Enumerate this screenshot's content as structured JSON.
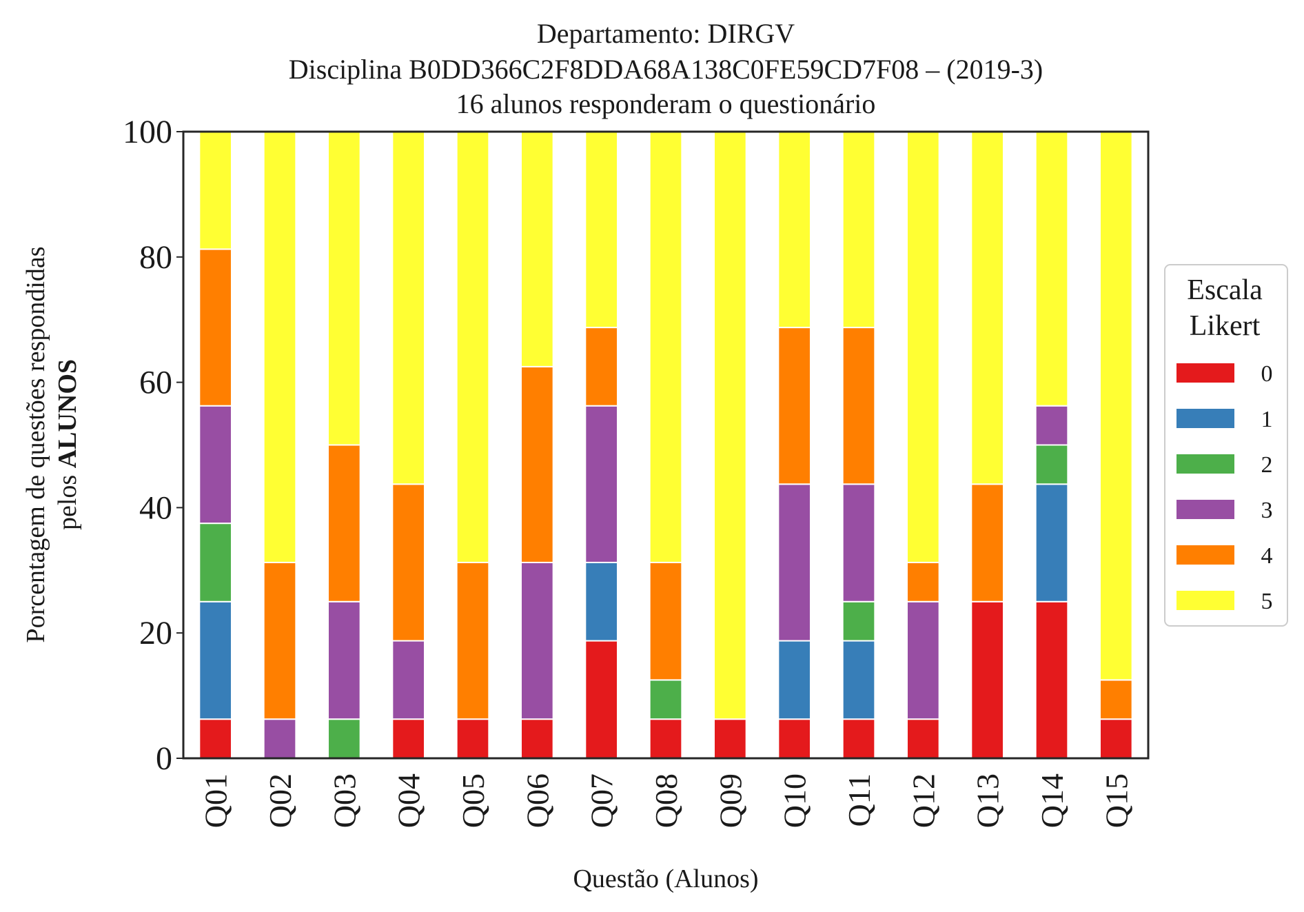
{
  "chart_data": {
    "type": "bar",
    "stacked": true,
    "title_lines": [
      "Departamento: DIRGV",
      "Disciplina B0DD366C2F8DDA68A138C0FE59CD7F08 – (2019-3)",
      "16 alunos responderam o questionário"
    ],
    "xlabel": "Questão (Alunos)",
    "ylabel_line1": "Porcentagem de questões respondidas",
    "ylabel_line2_prefix": "pelos ",
    "ylabel_line2_bold": "ALUNOS",
    "ylim": [
      0,
      100
    ],
    "yticks": [
      "0",
      "20",
      "40",
      "60",
      "80",
      "100"
    ],
    "grid": false,
    "legend": {
      "title_lines": [
        "Escala",
        "Likert"
      ],
      "placement": "right"
    },
    "categories": [
      "Q01",
      "Q02",
      "Q03",
      "Q04",
      "Q05",
      "Q06",
      "Q07",
      "Q08",
      "Q09",
      "Q10",
      "Q11",
      "Q12",
      "Q13",
      "Q14",
      "Q15"
    ],
    "series": [
      {
        "name": "0",
        "color": "#e41a1c",
        "values": [
          6.25,
          0,
          0,
          6.25,
          6.25,
          6.25,
          18.75,
          6.25,
          6.25,
          6.25,
          6.25,
          6.25,
          25,
          25,
          6.25
        ]
      },
      {
        "name": "1",
        "color": "#377eb8",
        "values": [
          18.75,
          0,
          0,
          0,
          0,
          0,
          12.5,
          0,
          0,
          12.5,
          12.5,
          0,
          0,
          18.75,
          0
        ]
      },
      {
        "name": "2",
        "color": "#4daf4a",
        "values": [
          12.5,
          0,
          6.25,
          0,
          0,
          0,
          0,
          6.25,
          0,
          0,
          6.25,
          0,
          0,
          6.25,
          0
        ]
      },
      {
        "name": "3",
        "color": "#984ea3",
        "values": [
          18.75,
          6.25,
          18.75,
          12.5,
          0,
          25,
          25,
          0,
          0,
          25,
          18.75,
          18.75,
          0,
          6.25,
          0
        ]
      },
      {
        "name": "4",
        "color": "#ff7f00",
        "values": [
          25,
          25,
          25,
          25,
          25,
          31.25,
          12.5,
          18.75,
          0,
          25,
          25,
          6.25,
          18.75,
          0,
          6.25
        ]
      },
      {
        "name": "5",
        "color": "#ffff33",
        "values": [
          18.75,
          68.75,
          50,
          56.25,
          68.75,
          37.5,
          31.25,
          68.75,
          93.75,
          31.25,
          31.25,
          68.75,
          56.25,
          43.75,
          87.5
        ]
      }
    ]
  }
}
